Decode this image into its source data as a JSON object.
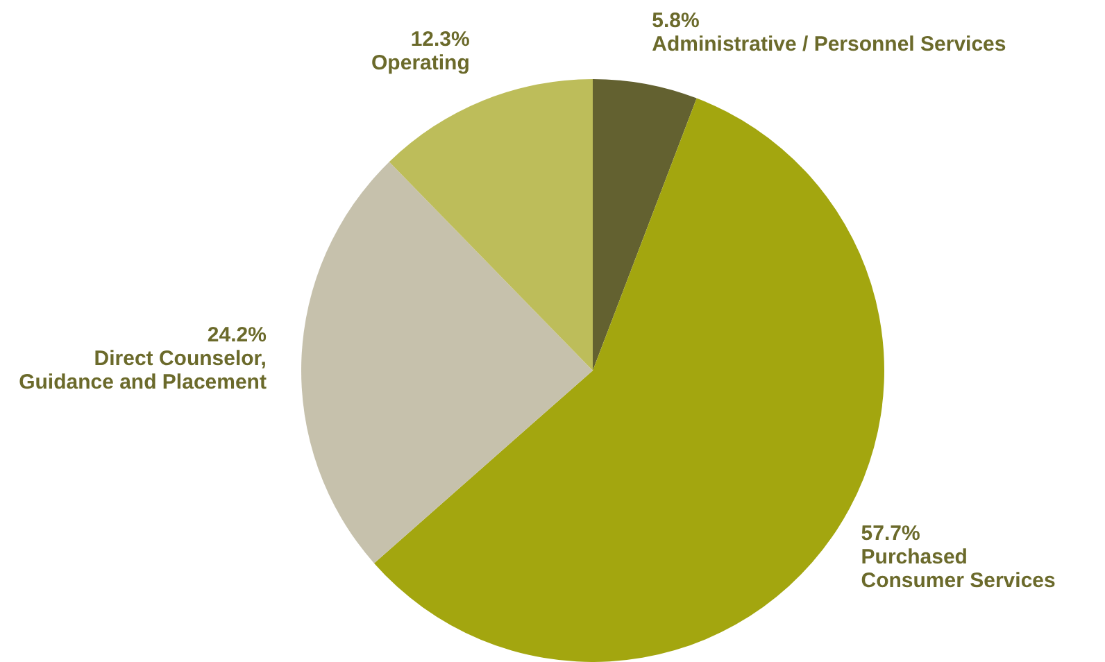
{
  "chart_data": {
    "type": "pie",
    "categories": [
      "Administrative / Personnel Services",
      "Purchased\nConsumer Services",
      "Direct Counselor,\nGuidance and Placement",
      "Operating"
    ],
    "values": [
      5.8,
      57.7,
      24.2,
      12.3
    ],
    "colors": [
      "#636130",
      "#a3a60f",
      "#c6c1ac",
      "#bdbd5a"
    ],
    "value_labels": [
      "5.8%",
      "57.7%",
      "24.2%",
      "12.3%"
    ]
  }
}
